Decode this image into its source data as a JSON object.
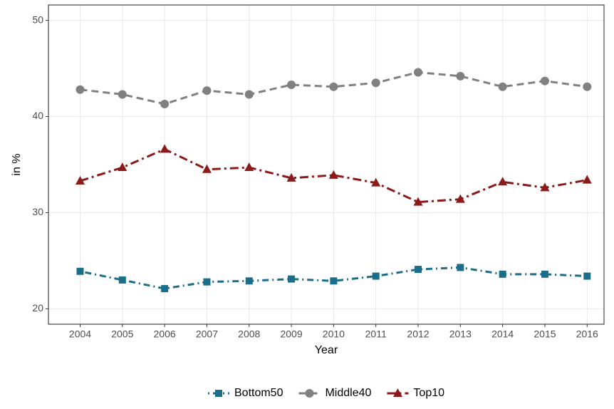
{
  "chart_data": {
    "type": "line",
    "x_label": "Year",
    "y_label": "in %",
    "x": [
      2004,
      2005,
      2006,
      2007,
      2008,
      2009,
      2010,
      2011,
      2012,
      2013,
      2014,
      2015,
      2016
    ],
    "xlim": [
      2003.25,
      2016.4
    ],
    "xticks": [
      2004,
      2005,
      2006,
      2007,
      2008,
      2009,
      2010,
      2011,
      2012,
      2013,
      2014,
      2015,
      2016
    ],
    "ylim": [
      18.4,
      51.6
    ],
    "yticks": [
      20,
      30,
      40,
      50
    ],
    "grid": true,
    "legend": "bottom",
    "series": [
      {
        "name": "Bottom50",
        "color": "#1b6e8a",
        "marker": "square",
        "dash": "dotdash",
        "values": [
          23.9,
          23.0,
          22.1,
          22.8,
          22.9,
          23.1,
          22.9,
          23.4,
          24.1,
          24.3,
          23.6,
          23.6,
          23.4
        ]
      },
      {
        "name": "Middle40",
        "color": "#808080",
        "marker": "circle",
        "dash": "dashed",
        "values": [
          42.8,
          42.3,
          41.3,
          42.7,
          42.3,
          43.3,
          43.1,
          43.5,
          44.6,
          44.2,
          43.1,
          43.7,
          43.1
        ]
      },
      {
        "name": "Top10",
        "color": "#8b1a1a",
        "marker": "triangle",
        "dash": "dashdot",
        "values": [
          33.3,
          34.7,
          36.6,
          34.5,
          34.7,
          33.6,
          33.9,
          33.1,
          31.1,
          31.4,
          33.2,
          32.6,
          33.4
        ]
      }
    ]
  }
}
